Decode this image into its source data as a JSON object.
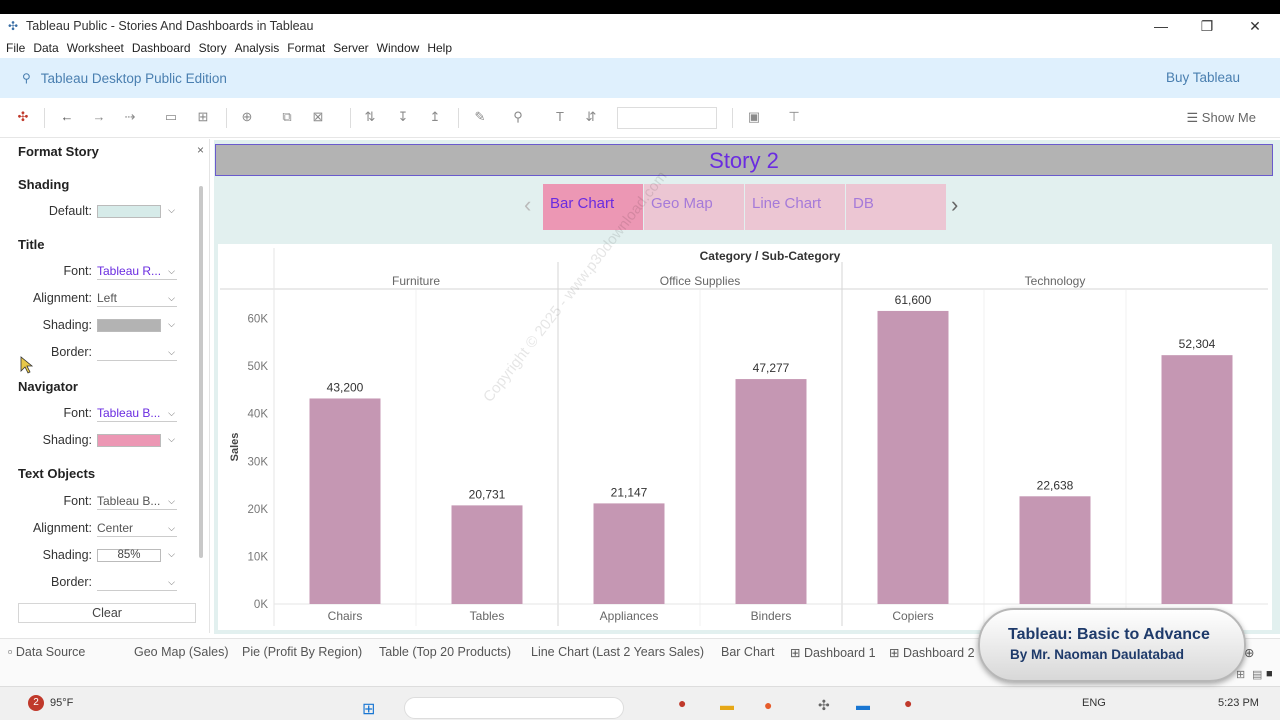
{
  "window": {
    "title": "Tableau Public - Stories And Dashboards in Tableau"
  },
  "menu": [
    "File",
    "Data",
    "Worksheet",
    "Dashboard",
    "Story",
    "Analysis",
    "Format",
    "Server",
    "Window",
    "Help"
  ],
  "banner": {
    "title": "Tableau Desktop Public Edition",
    "buy": "Buy Tableau"
  },
  "toolbar": {
    "show_me": "Show Me"
  },
  "format_story": {
    "panel_title": "Format Story",
    "close": "×",
    "shading_section": "Shading",
    "default_label": "Default:",
    "default_color": "#d6ebe9",
    "title_section": "Title",
    "title_font_label": "Font:",
    "title_font_value": "Tableau R...",
    "title_alignment_label": "Alignment:",
    "title_alignment_value": "Left",
    "title_shading_label": "Shading:",
    "title_shading_color": "#b3b3b3",
    "title_border_label": "Border:",
    "navigator_section": "Navigator",
    "nav_font_label": "Font:",
    "nav_font_value": "Tableau B...",
    "nav_shading_label": "Shading:",
    "nav_shading_color": "#ec97b4",
    "text_section": "Text Objects",
    "text_font_label": "Font:",
    "text_font_value": "Tableau B...",
    "text_alignment_label": "Alignment:",
    "text_alignment_value": "Center",
    "text_shading_label": "Shading:",
    "text_shading_value": "85%",
    "text_border_label": "Border:",
    "clear": "Clear"
  },
  "story": {
    "title": "Story 2",
    "navigator": [
      "Bar Chart",
      "Geo Map",
      "Line Chart",
      "DB"
    ],
    "selected": "Bar Chart"
  },
  "chart_data": {
    "type": "bar",
    "title": "Category / Sub-Category",
    "ylabel": "Sales",
    "groups": [
      "Furniture",
      "Office Supplies",
      "Technology"
    ],
    "categories": [
      "Chairs",
      "Tables",
      "Appliances",
      "Binders",
      "Copiers",
      "",
      ""
    ],
    "category_group": [
      "Furniture",
      "Furniture",
      "Office Supplies",
      "Office Supplies",
      "Technology",
      "Technology",
      "Technology"
    ],
    "values": [
      43200,
      20731,
      21147,
      47277,
      61600,
      22638,
      52304
    ],
    "value_labels": [
      "43,200",
      "20,731",
      "21,147",
      "47,277",
      "61,600",
      "22,638",
      "52,304"
    ],
    "yticks": [
      "0K",
      "10K",
      "20K",
      "30K",
      "40K",
      "50K",
      "60K"
    ],
    "ylim": [
      0,
      66000
    ],
    "bar_color": "#c597b3"
  },
  "sheet_tabs": [
    "Data Source",
    "Geo Map (Sales)",
    "Pie (Profit By Region)",
    "Table (Top 20 Products)",
    "Line Chart (Last 2 Years Sales)",
    "Bar Chart",
    "Dashboard 1",
    "Dashboard 2"
  ],
  "overlay": {
    "course_title": "Tableau: Basic to Advance",
    "course_author": "By Mr. Naoman Daulatabad",
    "watermark": "Copyright © 2025 - www.p30download.com"
  },
  "taskbar": {
    "weather": "95°F",
    "lang": "ENG",
    "time": "5:23 PM",
    "badge": "2"
  }
}
